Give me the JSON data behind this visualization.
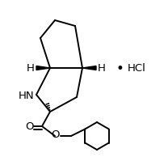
{
  "background_color": "#ffffff",
  "line_color": "#000000",
  "line_width": 1.4,
  "hcl_text": "HCl",
  "dot_text": "•",
  "hn_label": "HN",
  "h_left_label": "H",
  "h_right_label": "H",
  "o_carbonyl": "O",
  "o_ester": "O",
  "font_size_atom": 8.5,
  "font_size_hcl": 9.5
}
